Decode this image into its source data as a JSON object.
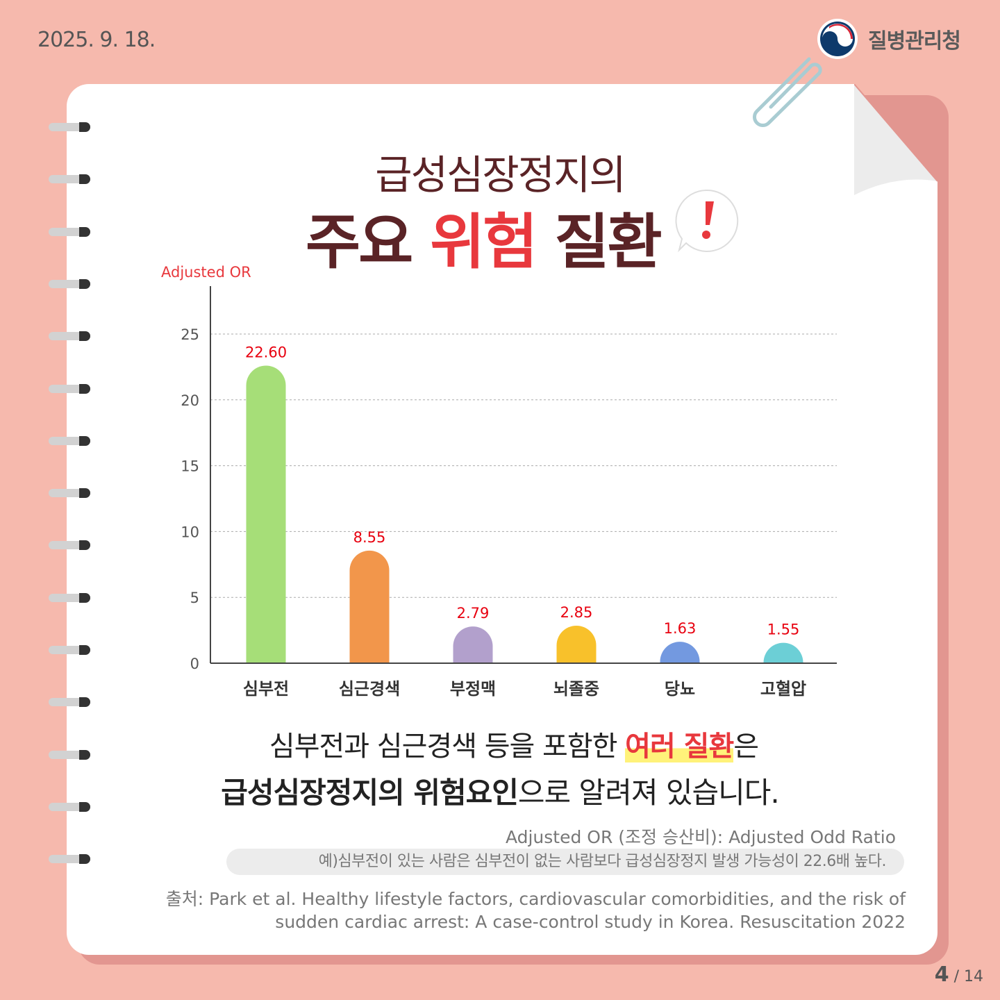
{
  "date": "2025. 9. 18.",
  "agency": "질병관리청",
  "title_line1": "급성심장정지의",
  "title_line2": {
    "part1": "주요 ",
    "part2": "위험",
    "part3": " 질환"
  },
  "chart_data": {
    "type": "bar",
    "ylabel": "Adjusted OR",
    "categories": [
      "심부전",
      "심근경색",
      "부정맥",
      "뇌졸중",
      "당뇨",
      "고혈압"
    ],
    "values": [
      22.6,
      8.55,
      2.79,
      2.85,
      1.63,
      1.55
    ],
    "value_labels": [
      "22.60",
      "8.55",
      "2.79",
      "2.85",
      "1.63",
      "1.55"
    ],
    "colors": [
      "#a6de78",
      "#f2964b",
      "#b2a0cc",
      "#f8c12b",
      "#7399e0",
      "#6ccfd6"
    ],
    "yticks": [
      0,
      5,
      10,
      15,
      20,
      25
    ],
    "ylim": [
      0,
      27
    ],
    "grid": true
  },
  "summary": {
    "l1a": "심부전과 심근경색 등을 포함한 ",
    "l1b": "여러 질환",
    "l1c": "은",
    "l2a": "급성심장정지의 위험요인",
    "l2b": "으로 알려져 있습니다."
  },
  "note1": "Adjusted OR (조정 승산비): Adjusted Odd Ratio",
  "note2": "예)심부전이 있는 사람은 심부전이 없는 사람보다 급성심장정지 발생 가능성이 22.6배 높다.",
  "source_l1": "출처: Park  et al. Healthy lifestyle factors, cardiovascular comorbidities, and the risk of",
  "source_l2": "sudden cardiac arrest: A case-control study in Korea. Resuscitation 2022",
  "page": {
    "current": "4",
    "total": "/ 14"
  }
}
